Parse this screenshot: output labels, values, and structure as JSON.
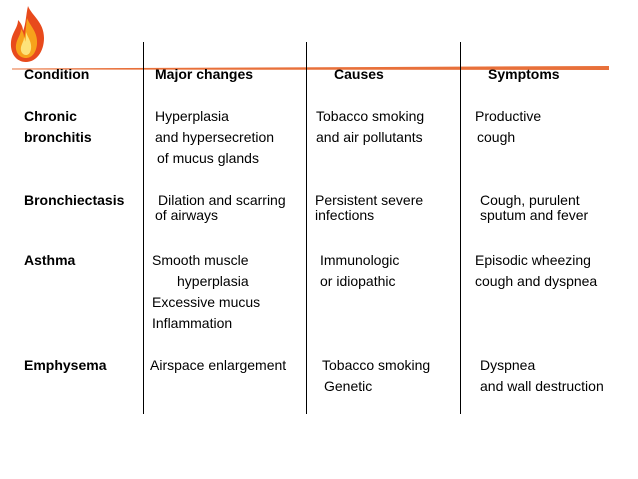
{
  "colors": {
    "rule": "#e8703a",
    "flame_outer": "#e84a1c",
    "flame_mid": "#f7a21b",
    "flame_inner": "#fde37a"
  },
  "logo_icon": "flame-icon",
  "headers": {
    "condition": "Condition",
    "major_changes": "Major changes",
    "causes": "Causes",
    "symptoms": "Symptoms"
  },
  "rows": [
    {
      "condition": [
        "Chronic",
        "bronchitis"
      ],
      "major_changes": [
        "Hyperplasia",
        "and hypersecretion",
        "of mucus glands"
      ],
      "causes": [
        "Tobacco smoking",
        "and air pollutants"
      ],
      "symptoms": [
        "Productive",
        "cough"
      ]
    },
    {
      "condition": [
        "Bronchiectasis"
      ],
      "major_changes": [
        "Dilation and scarring",
        "of airways"
      ],
      "causes": [
        "Persistent severe",
        "infections"
      ],
      "symptoms": [
        "Cough, purulent",
        "sputum and fever"
      ]
    },
    {
      "condition": [
        "Asthma"
      ],
      "major_changes": [
        "Smooth muscle",
        "hyperplasia",
        "Excessive mucus",
        "Inflammation"
      ],
      "causes": [
        "Immunologic",
        "or idiopathic"
      ],
      "symptoms": [
        "Episodic wheezing",
        "cough and dyspnea"
      ]
    },
    {
      "condition": [
        "Emphysema"
      ],
      "major_changes": [
        "Airspace enlargement"
      ],
      "causes": [
        "Tobacco smoking",
        "Genetic"
      ],
      "symptoms": [
        "Dyspnea",
        "and wall destruction"
      ]
    }
  ]
}
